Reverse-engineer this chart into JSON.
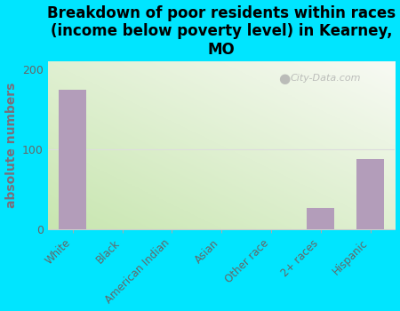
{
  "title": "Breakdown of poor residents within races\n(income below poverty level) in Kearney,\nMO",
  "categories": [
    "White",
    "Black",
    "American Indian",
    "Asian",
    "Other race",
    "2+ races",
    "Hispanic"
  ],
  "values": [
    175,
    0,
    0,
    0,
    0,
    27,
    88
  ],
  "bar_color": "#b39dba",
  "ylabel": "absolute numbers",
  "ylim": [
    0,
    210
  ],
  "yticks": [
    0,
    100,
    200
  ],
  "background_color": "#00e5ff",
  "grad_color_bottomleft": "#c8e6b0",
  "grad_color_topright": "#f8faf4",
  "watermark": "City-Data.com",
  "title_fontsize": 12,
  "ylabel_fontsize": 10,
  "ylabel_color": "#7a6e7a",
  "tick_label_color": "#666666",
  "grid_line_color": "#dddddd",
  "watermark_color": "#aaaaaa"
}
